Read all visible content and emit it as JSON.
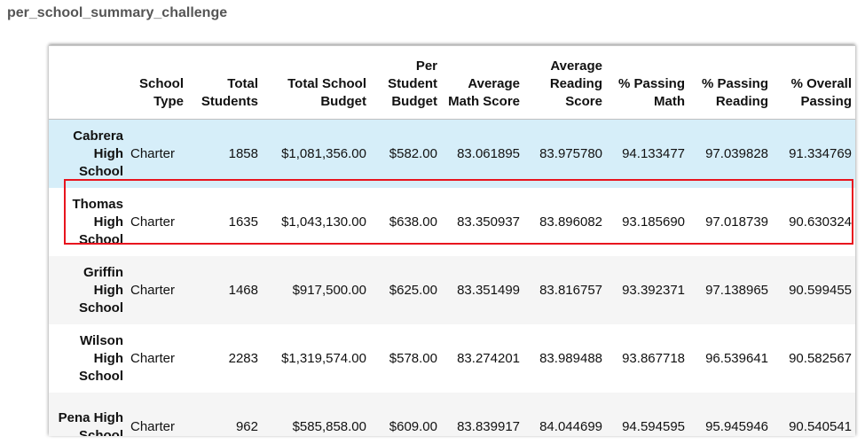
{
  "page": {
    "title": "per_school_summary_challenge"
  },
  "table": {
    "columns": [
      {
        "key": "index",
        "label": ""
      },
      {
        "key": "school_type",
        "label": "School Type"
      },
      {
        "key": "total_students",
        "label": "Total Students"
      },
      {
        "key": "total_budget",
        "label": "Total School Budget"
      },
      {
        "key": "per_student_budget",
        "label": "Per Student Budget"
      },
      {
        "key": "avg_math",
        "label": "Average Math Score"
      },
      {
        "key": "avg_reading",
        "label": "Average Reading Score"
      },
      {
        "key": "pct_math",
        "label": "% Passing Math"
      },
      {
        "key": "pct_reading",
        "label": "% Passing Reading"
      },
      {
        "key": "pct_overall",
        "label": "% Overall Passing"
      }
    ],
    "rows": [
      {
        "index": "Cabrera High School",
        "school_type": "Charter",
        "total_students": "1858",
        "total_budget": "$1,081,356.00",
        "per_student_budget": "$582.00",
        "avg_math": "83.061895",
        "avg_reading": "83.975780",
        "pct_math": "94.133477",
        "pct_reading": "97.039828",
        "pct_overall": "91.334769",
        "state": "hover"
      },
      {
        "index": "Thomas High School",
        "school_type": "Charter",
        "total_students": "1635",
        "total_budget": "$1,043,130.00",
        "per_student_budget": "$638.00",
        "avg_math": "83.350937",
        "avg_reading": "83.896082",
        "pct_math": "93.185690",
        "pct_reading": "97.018739",
        "pct_overall": "90.630324",
        "state": "highlighted"
      },
      {
        "index": "Griffin High School",
        "school_type": "Charter",
        "total_students": "1468",
        "total_budget": "$917,500.00",
        "per_student_budget": "$625.00",
        "avg_math": "83.351499",
        "avg_reading": "83.816757",
        "pct_math": "93.392371",
        "pct_reading": "97.138965",
        "pct_overall": "90.599455",
        "state": "normal"
      },
      {
        "index": "Wilson High School",
        "school_type": "Charter",
        "total_students": "2283",
        "total_budget": "$1,319,574.00",
        "per_student_budget": "$578.00",
        "avg_math": "83.274201",
        "avg_reading": "83.989488",
        "pct_math": "93.867718",
        "pct_reading": "96.539641",
        "pct_overall": "90.582567",
        "state": "normal"
      },
      {
        "index": "Pena High School",
        "school_type": "Charter",
        "total_students": "962",
        "total_budget": "$585,858.00",
        "per_student_budget": "$609.00",
        "avg_math": "83.839917",
        "avg_reading": "84.044699",
        "pct_math": "94.594595",
        "pct_reading": "95.945946",
        "pct_overall": "90.540541",
        "state": "normal"
      }
    ]
  },
  "colors": {
    "hover_row": "#d6eef9",
    "striped_row": "#f5f5f5",
    "highlight_border": "#e8141e"
  }
}
